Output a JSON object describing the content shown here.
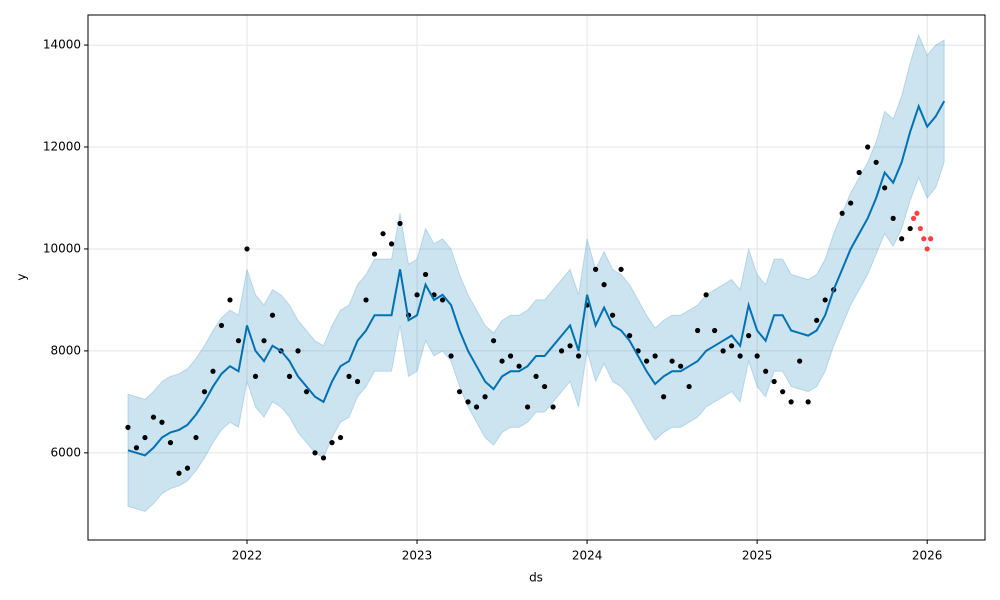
{
  "chart_data": {
    "type": "line",
    "xlabel": "ds",
    "ylabel": "y",
    "xlim": [
      2021.065,
      2026.34
    ],
    "ylim": [
      4290,
      14590
    ],
    "xticks": [
      2022,
      2023,
      2024,
      2025,
      2026
    ],
    "yticks": [
      6000,
      8000,
      10000,
      12000,
      14000
    ],
    "grid": true,
    "x": [
      2021.3,
      2021.35,
      2021.4,
      2021.45,
      2021.5,
      2021.55,
      2021.6,
      2021.65,
      2021.7,
      2021.75,
      2021.8,
      2021.85,
      2021.9,
      2021.95,
      2022.0,
      2022.05,
      2022.1,
      2022.15,
      2022.2,
      2022.25,
      2022.3,
      2022.35,
      2022.4,
      2022.45,
      2022.5,
      2022.55,
      2022.6,
      2022.65,
      2022.7,
      2022.75,
      2022.8,
      2022.85,
      2022.9,
      2022.95,
      2023.0,
      2023.05,
      2023.1,
      2023.15,
      2023.2,
      2023.25,
      2023.3,
      2023.35,
      2023.4,
      2023.45,
      2023.5,
      2023.55,
      2023.6,
      2023.65,
      2023.7,
      2023.75,
      2023.8,
      2023.85,
      2023.9,
      2023.95,
      2024.0,
      2024.05,
      2024.1,
      2024.15,
      2024.2,
      2024.25,
      2024.3,
      2024.35,
      2024.4,
      2024.45,
      2024.5,
      2024.55,
      2024.6,
      2024.65,
      2024.7,
      2024.75,
      2024.8,
      2024.85,
      2024.9,
      2024.95,
      2025.0,
      2025.05,
      2025.1,
      2025.15,
      2025.2,
      2025.25,
      2025.3,
      2025.35,
      2025.4,
      2025.45,
      2025.5,
      2025.55,
      2025.6,
      2025.65,
      2025.7,
      2025.75,
      2025.8,
      2025.85,
      2025.9,
      2025.95,
      2026.0,
      2026.05,
      2026.1
    ],
    "forecast": {
      "color": "#0072B2",
      "values": [
        6050,
        6000,
        5950,
        6100,
        6300,
        6400,
        6450,
        6550,
        6750,
        7000,
        7300,
        7550,
        7700,
        7600,
        8500,
        8000,
        7800,
        8100,
        8000,
        7800,
        7500,
        7300,
        7100,
        7000,
        7400,
        7700,
        7800,
        8200,
        8400,
        8700,
        8700,
        8700,
        9600,
        8600,
        8700,
        9300,
        9000,
        9100,
        8900,
        8400,
        8000,
        7700,
        7400,
        7250,
        7500,
        7600,
        7600,
        7700,
        7900,
        7900,
        8100,
        8300,
        8500,
        8000,
        9100,
        8500,
        8850,
        8500,
        8400,
        8200,
        7900,
        7600,
        7350,
        7500,
        7600,
        7600,
        7700,
        7800,
        8000,
        8100,
        8200,
        8300,
        8100,
        8900,
        8400,
        8200,
        8700,
        8700,
        8400,
        8350,
        8300,
        8400,
        8700,
        9200,
        9600,
        10000,
        10300,
        10600,
        11000,
        11500,
        11300,
        11700,
        12300,
        12800,
        12400,
        12600,
        12900
      ]
    },
    "band": {
      "color": "#0072B2",
      "lower": [
        4950,
        4900,
        4850,
        5000,
        5200,
        5300,
        5350,
        5450,
        5650,
        5900,
        6200,
        6450,
        6600,
        6500,
        7400,
        6900,
        6700,
        7000,
        6900,
        6700,
        6400,
        6200,
        6000,
        5900,
        6300,
        6600,
        6700,
        7100,
        7300,
        7600,
        7600,
        7600,
        8500,
        7500,
        7600,
        8200,
        7900,
        8000,
        7800,
        7300,
        6900,
        6600,
        6300,
        6150,
        6400,
        6500,
        6500,
        6600,
        6800,
        6800,
        7000,
        7200,
        7400,
        6900,
        8000,
        7400,
        7750,
        7400,
        7300,
        7100,
        6800,
        6500,
        6250,
        6400,
        6500,
        6500,
        6600,
        6700,
        6900,
        7000,
        7100,
        7200,
        7000,
        7800,
        7300,
        7100,
        7600,
        7600,
        7300,
        7250,
        7200,
        7300,
        7600,
        8100,
        8500,
        8900,
        9200,
        9500,
        9900,
        10300,
        10050,
        10400,
        10950,
        11400,
        11000,
        11200,
        11700
      ],
      "upper": [
        7150,
        7100,
        7050,
        7200,
        7400,
        7500,
        7550,
        7650,
        7850,
        8100,
        8400,
        8650,
        8800,
        8700,
        9600,
        9100,
        8900,
        9200,
        9100,
        8900,
        8600,
        8400,
        8200,
        8100,
        8500,
        8800,
        8900,
        9300,
        9500,
        9800,
        9800,
        9800,
        10700,
        9700,
        9800,
        10400,
        10100,
        10200,
        10000,
        9500,
        9100,
        8800,
        8500,
        8350,
        8600,
        8700,
        8700,
        8800,
        9000,
        9000,
        9200,
        9400,
        9600,
        9100,
        10200,
        9600,
        9950,
        9600,
        9500,
        9300,
        9000,
        8700,
        8450,
        8600,
        8700,
        8700,
        8800,
        8900,
        9100,
        9200,
        9300,
        9400,
        9200,
        10000,
        9500,
        9300,
        9800,
        9800,
        9500,
        9450,
        9400,
        9500,
        9800,
        10300,
        10700,
        11100,
        11400,
        11700,
        12100,
        12700,
        12550,
        13000,
        13650,
        14200,
        13800,
        14000,
        14100
      ]
    },
    "observed": [
      {
        "color": "#000000",
        "x": [
          2021.3,
          2021.35,
          2021.4,
          2021.45,
          2021.5,
          2021.55,
          2021.6,
          2021.65,
          2021.7,
          2021.75,
          2021.8,
          2021.85,
          2021.9,
          2021.95,
          2022.0,
          2022.05,
          2022.1,
          2022.15,
          2022.2,
          2022.25,
          2022.3,
          2022.35,
          2022.4,
          2022.45,
          2022.5,
          2022.55,
          2022.6,
          2022.65,
          2022.7,
          2022.75,
          2022.8,
          2022.85,
          2022.9,
          2022.95,
          2023.0,
          2023.05,
          2023.1,
          2023.15,
          2023.2,
          2023.25,
          2023.3,
          2023.35,
          2023.4,
          2023.45,
          2023.5,
          2023.55,
          2023.6,
          2023.65,
          2023.7,
          2023.75,
          2023.8,
          2023.85,
          2023.9,
          2023.95,
          2024.0,
          2024.05,
          2024.1,
          2024.15,
          2024.2,
          2024.25,
          2024.3,
          2024.35,
          2024.4,
          2024.45,
          2024.5,
          2024.55,
          2024.6,
          2024.65,
          2024.7,
          2024.75,
          2024.8,
          2024.85,
          2024.9,
          2024.95,
          2025.0,
          2025.05,
          2025.1,
          2025.15,
          2025.2,
          2025.25,
          2025.3,
          2025.35,
          2025.4,
          2025.45,
          2025.5,
          2025.55,
          2025.6,
          2025.65,
          2025.7,
          2025.75,
          2025.8,
          2025.85,
          2025.9
        ],
        "values": [
          6500,
          6100,
          6300,
          6700,
          6600,
          6200,
          5600,
          5700,
          6300,
          7200,
          7600,
          8500,
          9000,
          8200,
          10000,
          7500,
          8200,
          8700,
          8000,
          7500,
          8000,
          7200,
          6000,
          5900,
          6200,
          6300,
          7500,
          7400,
          9000,
          9900,
          10300,
          10100,
          10500,
          8700,
          9100,
          9500,
          9100,
          9000,
          7900,
          7200,
          7000,
          6900,
          7100,
          8200,
          7800,
          7900,
          7700,
          6900,
          7500,
          7300,
          6900,
          8000,
          8100,
          7900,
          8900,
          9600,
          9300,
          8700,
          9600,
          8300,
          8000,
          7800,
          7900,
          7100,
          7800,
          7700,
          7300,
          8400,
          9100,
          8400,
          8000,
          8100,
          7900,
          8300,
          7900,
          7600,
          7400,
          7200,
          7000,
          7800,
          7000,
          8600,
          9000,
          9200,
          10700,
          10900,
          11500,
          12000,
          11700,
          11200,
          10600,
          10200,
          10400
        ]
      },
      {
        "color": "#ff0000",
        "x": [
          2025.92,
          2025.94,
          2025.96,
          2025.98,
          2026.0,
          2026.02
        ],
        "values": [
          10600,
          10700,
          10400,
          10200,
          10000,
          10200
        ]
      }
    ]
  }
}
